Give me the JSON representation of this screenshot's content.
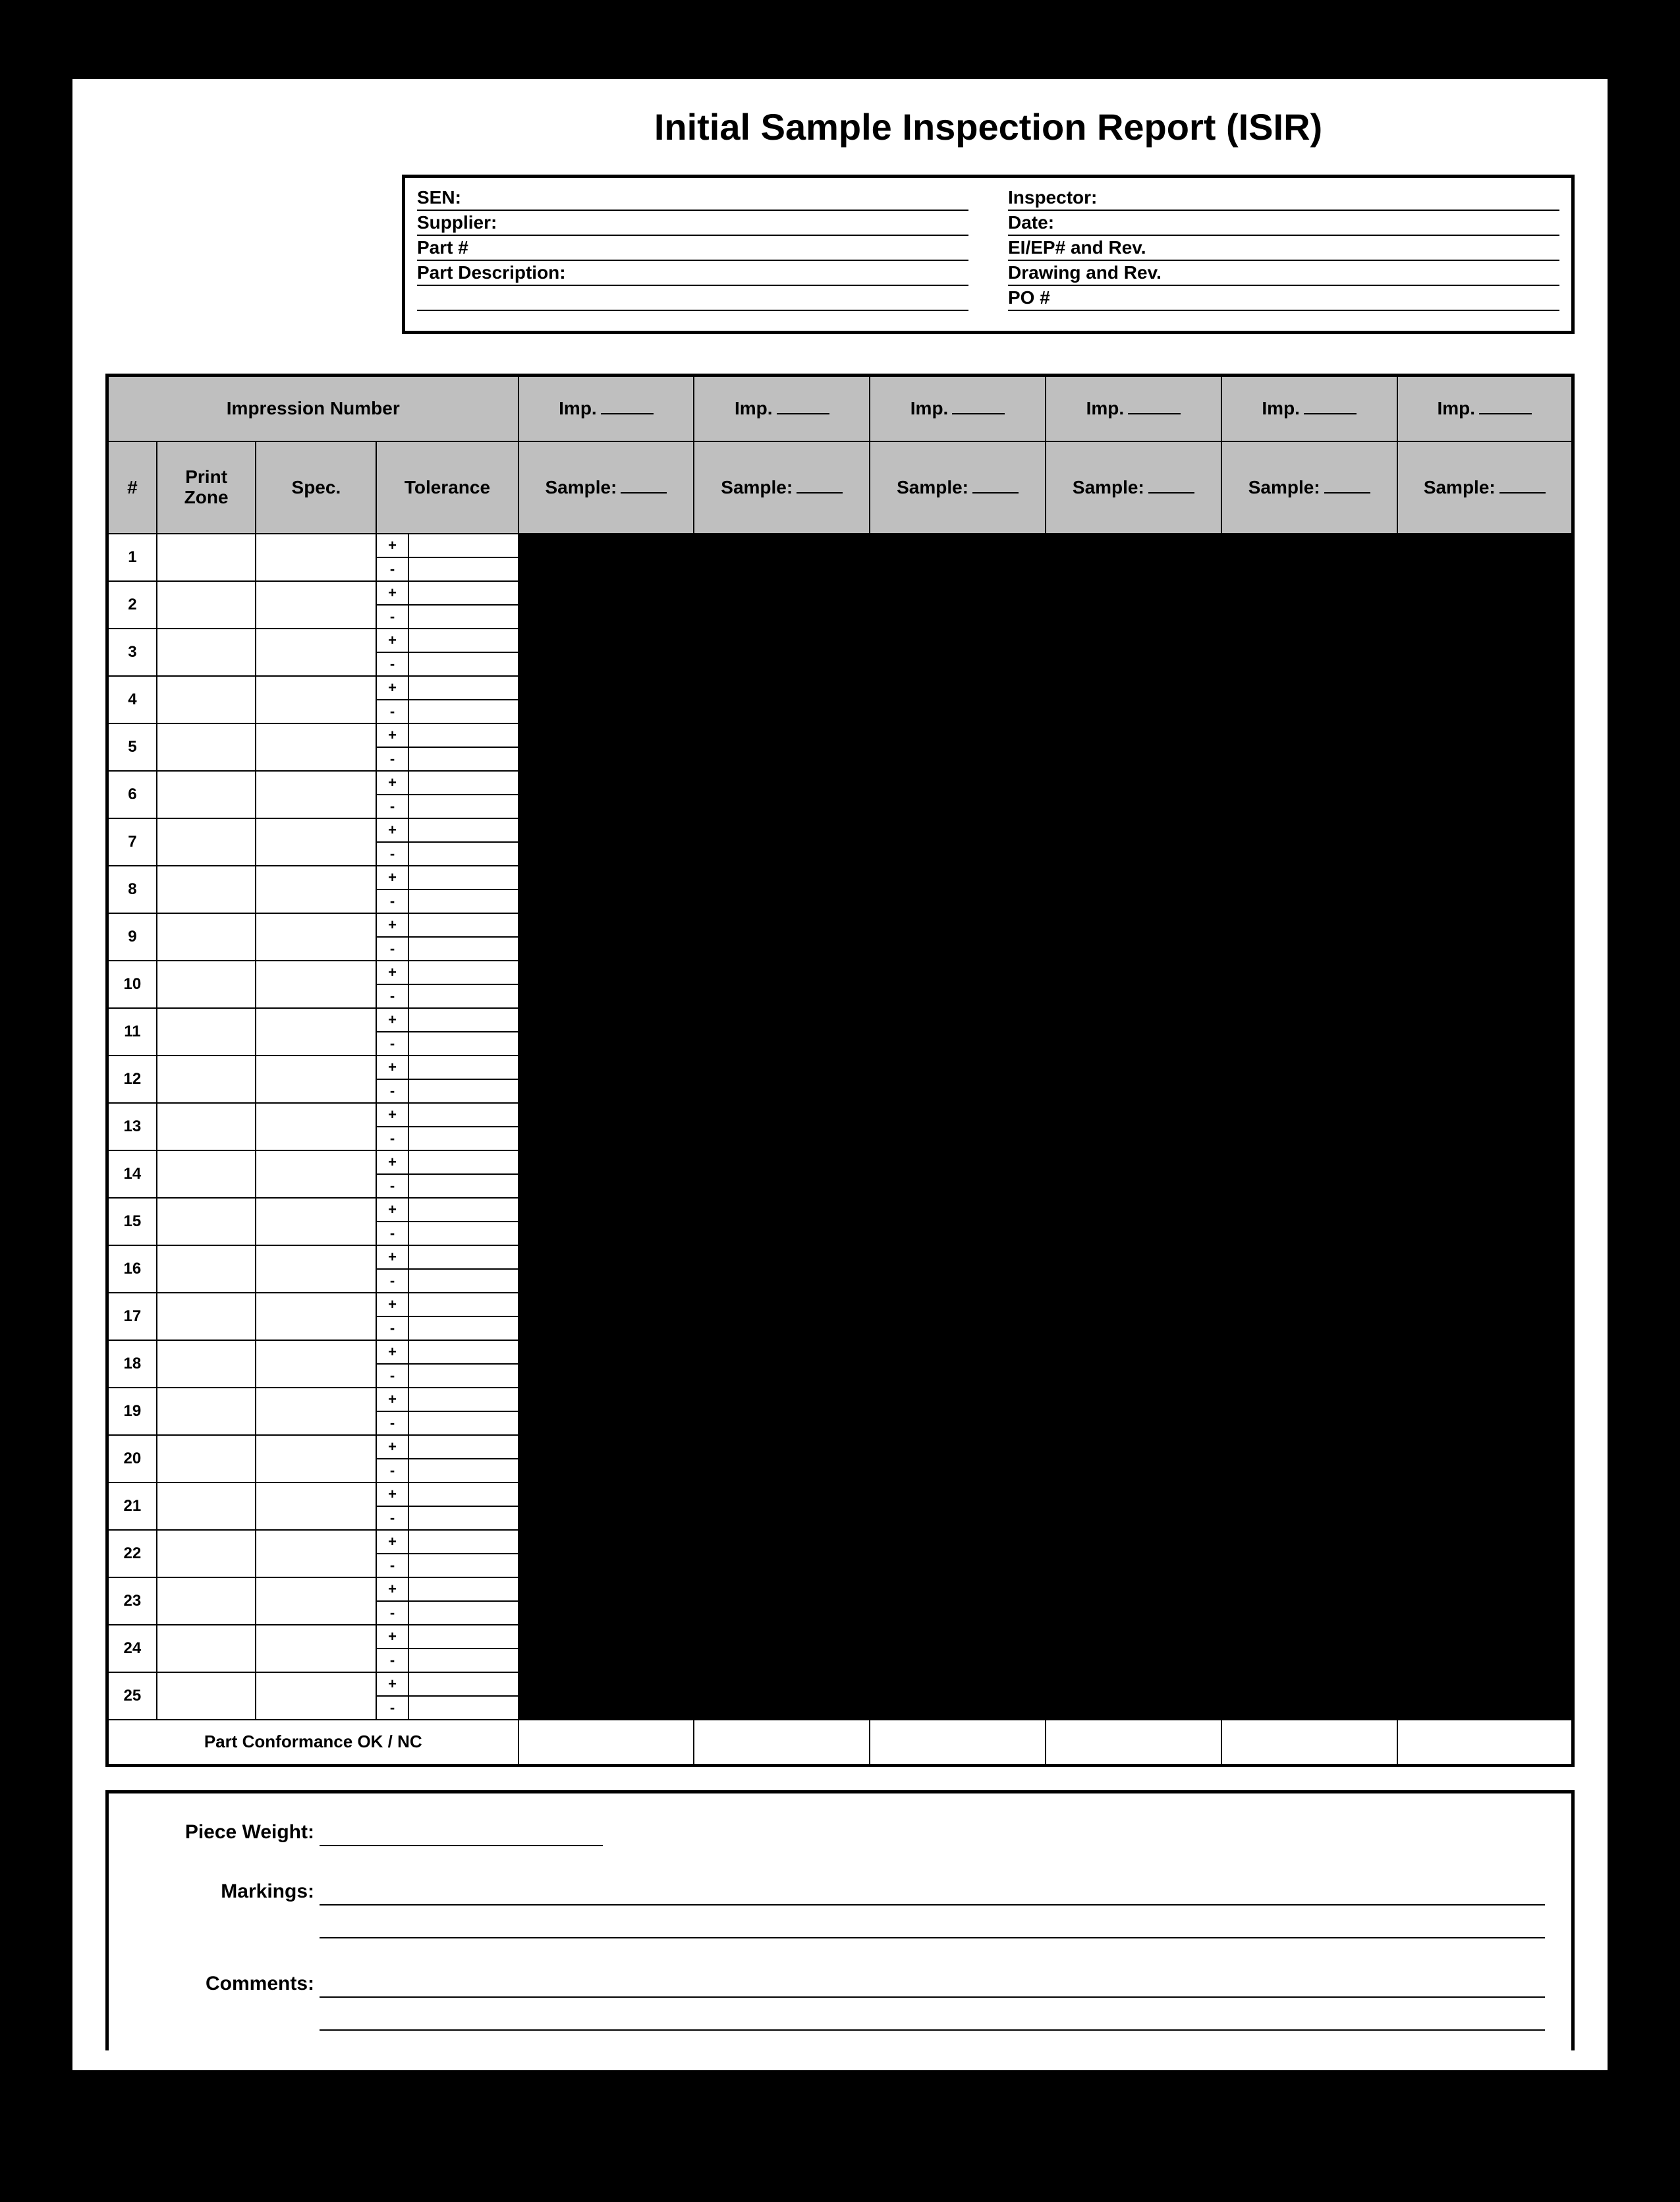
{
  "title": "Initial Sample Inspection Report (ISIR)",
  "colors": {
    "page_bg": "#ffffff",
    "outer_bg": "#000000",
    "header_fill": "#bfbfbf",
    "data_fill": "#000000",
    "border": "#000000"
  },
  "info": {
    "left": [
      {
        "label": "SEN:",
        "value": ""
      },
      {
        "label": "Supplier:",
        "value": ""
      },
      {
        "label": "Part #",
        "value": ""
      },
      {
        "label": "Part Description:",
        "value": ""
      },
      {
        "label": "",
        "value": ""
      }
    ],
    "right": [
      {
        "label": "Inspector:",
        "value": ""
      },
      {
        "label": "Date:",
        "value": ""
      },
      {
        "label": "EI/EP# and Rev.",
        "value": ""
      },
      {
        "label": "Drawing and Rev.",
        "value": ""
      },
      {
        "label": "PO #",
        "value": ""
      }
    ]
  },
  "table": {
    "impression_header": "Impression Number",
    "imp_label": "Imp.",
    "sample_label": "Sample:",
    "columns": {
      "num": "#",
      "print_zone": "Print Zone",
      "spec": "Spec.",
      "tolerance": "Tolerance"
    },
    "sample_count": 6,
    "row_count": 25,
    "tolerance_signs": [
      "+",
      "-"
    ],
    "conformance_label": "Part Conformance  OK / NC"
  },
  "footer": {
    "piece_weight": {
      "label": "Piece Weight:",
      "value": ""
    },
    "markings": {
      "label": "Markings:",
      "value": ""
    },
    "comments": {
      "label": "Comments:",
      "value": ""
    }
  }
}
